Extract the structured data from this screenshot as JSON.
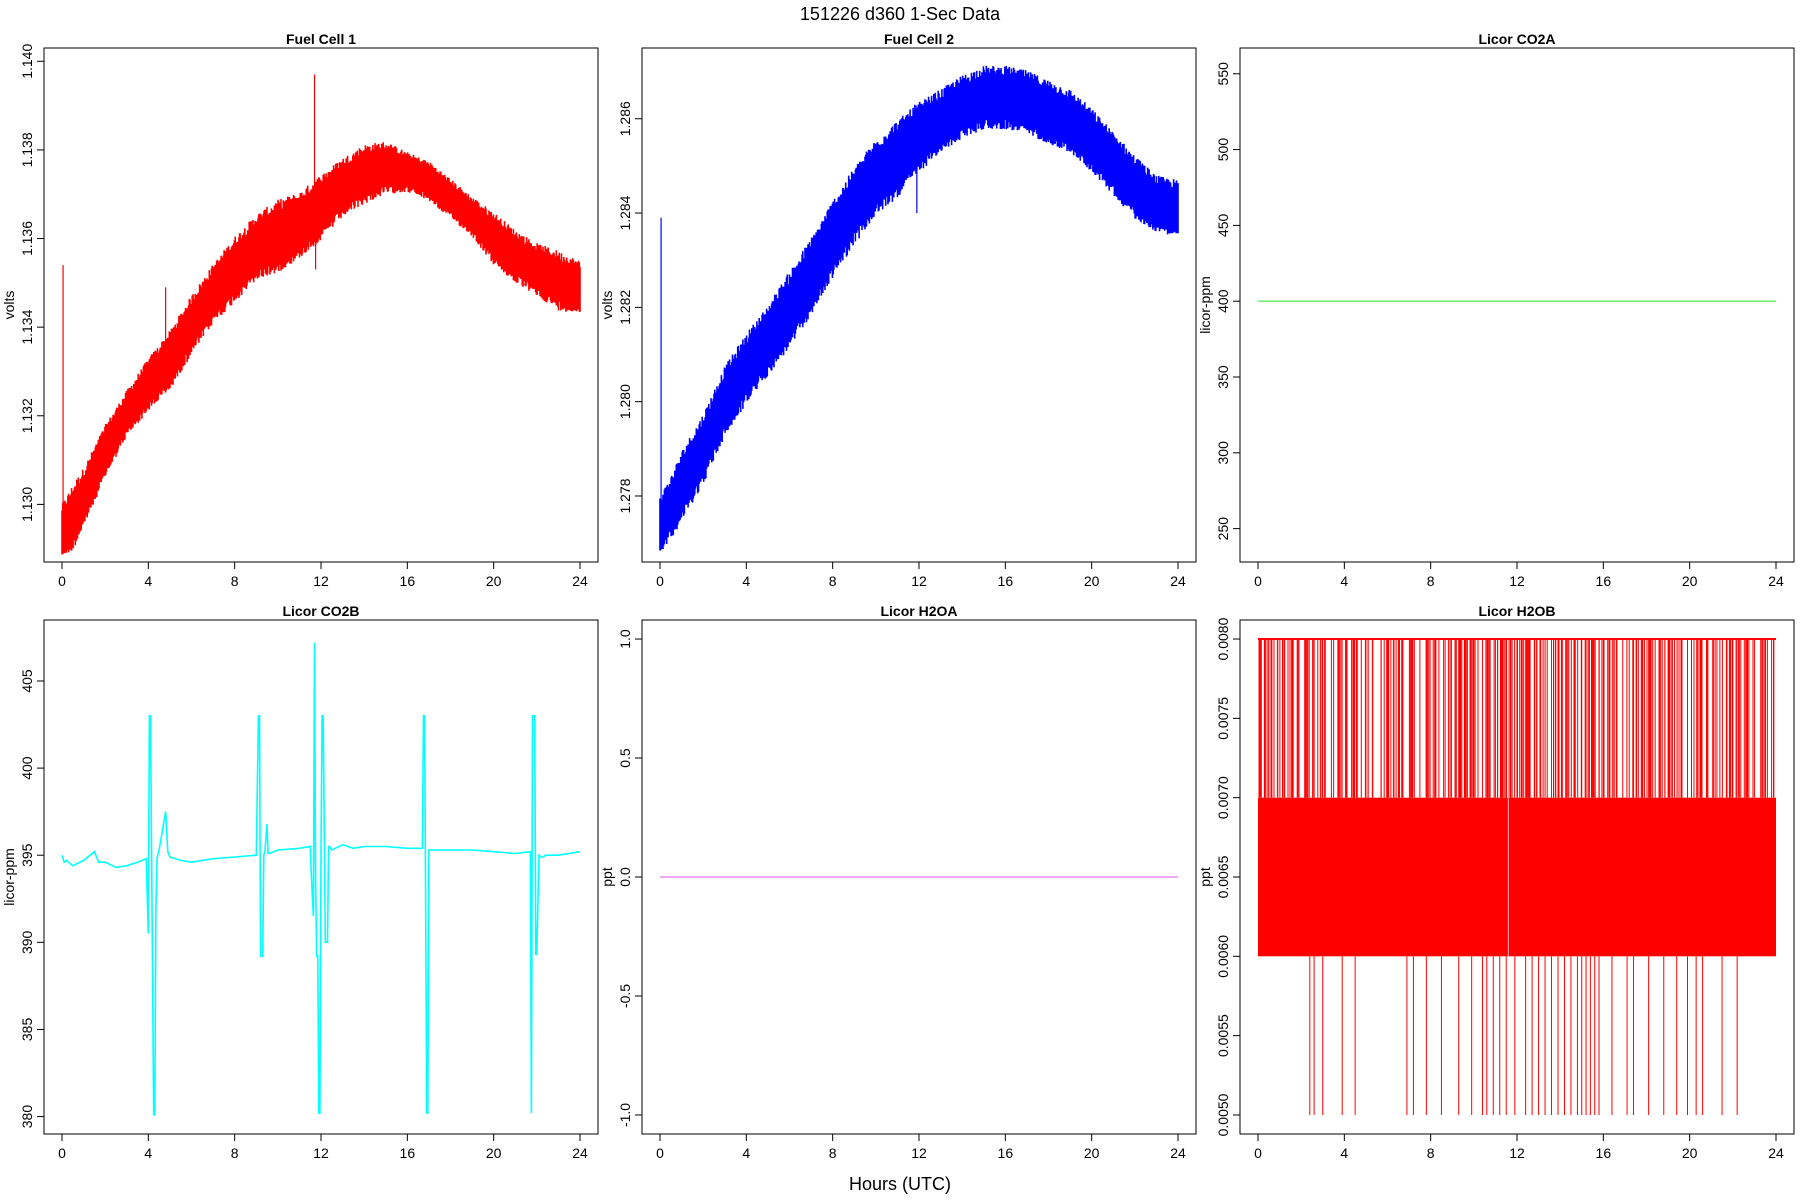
{
  "figure": {
    "title": "151226   d360   1-Sec Data",
    "xlabel": "Hours (UTC)"
  },
  "chart_data": [
    {
      "type": "line",
      "title": "Fuel Cell 1",
      "ylabel": "volts",
      "color": "#ff0000",
      "xlim": [
        0,
        24
      ],
      "xticks": [
        0,
        4,
        8,
        12,
        16,
        20,
        24
      ],
      "ylim": [
        1.1287,
        1.1403
      ],
      "yticks": [
        "1.130",
        "1.132",
        "1.134",
        "1.136",
        "1.138",
        "1.140"
      ],
      "yticks_values": [
        1.13,
        1.132,
        1.134,
        1.136,
        1.138,
        1.14
      ],
      "x": [
        0,
        0.5,
        1,
        2,
        3,
        4,
        5,
        6,
        7,
        8,
        9,
        10,
        11,
        12,
        13,
        14,
        15,
        16,
        17,
        18,
        19,
        20,
        21,
        22,
        23,
        24
      ],
      "y_low": [
        1.129,
        1.1292,
        1.1297,
        1.1308,
        1.1317,
        1.1323,
        1.1328,
        1.1336,
        1.1343,
        1.1348,
        1.1353,
        1.1355,
        1.1358,
        1.1362,
        1.1367,
        1.137,
        1.1372,
        1.1372,
        1.137,
        1.1366,
        1.1362,
        1.1356,
        1.1352,
        1.1349,
        1.1346,
        1.1345
      ],
      "y_high": [
        1.1298,
        1.1302,
        1.1306,
        1.1316,
        1.1324,
        1.1331,
        1.1337,
        1.1345,
        1.1352,
        1.1358,
        1.1363,
        1.1366,
        1.1368,
        1.1372,
        1.1376,
        1.1379,
        1.138,
        1.1378,
        1.1376,
        1.1372,
        1.1368,
        1.1364,
        1.136,
        1.1357,
        1.1355,
        1.1353
      ],
      "spikes": [
        {
          "x": 0.05,
          "y": 1.1354
        },
        {
          "x": 4.8,
          "y": 1.1349
        },
        {
          "x": 11.7,
          "y": 1.1397
        },
        {
          "x": 11.75,
          "y": 1.1353
        }
      ]
    },
    {
      "type": "line",
      "title": "Fuel Cell 2",
      "ylabel": "volts",
      "color": "#0000ff",
      "xlim": [
        0,
        24
      ],
      "xticks": [
        0,
        4,
        8,
        12,
        16,
        20,
        24
      ],
      "ylim": [
        1.2766,
        1.2875
      ],
      "yticks": [
        "1.278",
        "1.280",
        "1.282",
        "1.284",
        "1.286"
      ],
      "yticks_values": [
        1.278,
        1.28,
        1.282,
        1.284,
        1.286
      ],
      "x": [
        0,
        0.5,
        1,
        2,
        3,
        4,
        5,
        6,
        7,
        8,
        9,
        10,
        11,
        12,
        13,
        14,
        15,
        16,
        17,
        18,
        19,
        20,
        21,
        22,
        23,
        24
      ],
      "y_low": [
        1.277,
        1.2773,
        1.2777,
        1.2785,
        1.2795,
        1.2802,
        1.2808,
        1.2814,
        1.2821,
        1.2829,
        1.2836,
        1.2842,
        1.2846,
        1.2851,
        1.2855,
        1.2858,
        1.286,
        1.286,
        1.2859,
        1.2857,
        1.2855,
        1.2851,
        1.2846,
        1.2841,
        1.2838,
        1.2837
      ],
      "y_high": [
        1.2778,
        1.2782,
        1.2787,
        1.2795,
        1.2805,
        1.2812,
        1.2818,
        1.2825,
        1.2832,
        1.284,
        1.2847,
        1.2853,
        1.2857,
        1.2861,
        1.2864,
        1.2867,
        1.2869,
        1.2869,
        1.2868,
        1.2866,
        1.2864,
        1.286,
        1.2855,
        1.285,
        1.2846,
        1.2845
      ],
      "spikes": [
        {
          "x": 0.05,
          "y": 1.2839
        },
        {
          "x": 11.8,
          "y": 1.2863
        },
        {
          "x": 11.9,
          "y": 1.284
        }
      ]
    },
    {
      "type": "line",
      "title": "Licor CO2A",
      "ylabel": "licor-ppm",
      "color": "#7cf07c",
      "xlim": [
        0,
        24
      ],
      "xticks": [
        0,
        4,
        8,
        12,
        16,
        20,
        24
      ],
      "ylim": [
        228,
        567
      ],
      "yticks": [
        "250",
        "300",
        "350",
        "400",
        "450",
        "500",
        "550"
      ],
      "yticks_values": [
        250,
        300,
        350,
        400,
        450,
        500,
        550
      ],
      "x": [
        0,
        24
      ],
      "y": [
        400,
        400
      ]
    },
    {
      "type": "line",
      "title": "Licor CO2B",
      "ylabel": "licor-ppm",
      "color": "#00ffff",
      "xlim": [
        0,
        24
      ],
      "xticks": [
        0,
        4,
        8,
        12,
        16,
        20,
        24
      ],
      "ylim": [
        379,
        408.5
      ],
      "yticks": [
        "380",
        "385",
        "390",
        "395",
        "400",
        "405"
      ],
      "yticks_values": [
        380,
        385,
        390,
        395,
        400,
        405
      ],
      "x": [
        0,
        0.1,
        0.2,
        0.5,
        1.0,
        1.5,
        1.7,
        2.0,
        2.5,
        3.0,
        3.5,
        3.9,
        4.0,
        4.05,
        4.1,
        4.25,
        4.3,
        4.35,
        4.4,
        4.5,
        4.8,
        4.9,
        5.0,
        5.5,
        6.0,
        7.0,
        8.0,
        9.0,
        9.1,
        9.15,
        9.2,
        9.3,
        9.35,
        9.4,
        9.5,
        9.55,
        9.6,
        9.8,
        10.0,
        11.0,
        11.5,
        11.6,
        11.65,
        11.7,
        11.75,
        11.8,
        11.85,
        11.9,
        11.95,
        12.0,
        12.05,
        12.1,
        12.2,
        12.3,
        12.35,
        12.4,
        12.5,
        13.0,
        13.5,
        14.0,
        15.0,
        16.0,
        16.7,
        16.75,
        16.8,
        16.9,
        16.95,
        17.0,
        17.1,
        18.0,
        19.0,
        20.0,
        21.0,
        21.7,
        21.75,
        21.8,
        21.9,
        21.95,
        22.0,
        22.1,
        22.2,
        22.3,
        22.4,
        23.0,
        24.0
      ],
      "y": [
        395.0,
        394.6,
        394.7,
        394.4,
        394.7,
        395.2,
        394.6,
        394.6,
        394.3,
        394.4,
        394.6,
        394.8,
        390.5,
        403.0,
        403.0,
        380.1,
        380.1,
        392.0,
        394.8,
        395.3,
        397.5,
        395.2,
        394.9,
        394.7,
        394.6,
        394.8,
        394.9,
        395.0,
        403.0,
        403.0,
        389.2,
        389.2,
        395.0,
        395.2,
        396.8,
        395.1,
        395.1,
        395.2,
        395.3,
        395.4,
        395.5,
        392.5,
        391.5,
        407.2,
        393.5,
        389.2,
        389.2,
        380.2,
        380.2,
        395.2,
        403.0,
        403.0,
        390.0,
        390.0,
        395.5,
        395.5,
        395.3,
        395.6,
        395.4,
        395.5,
        395.5,
        395.4,
        395.4,
        403.0,
        403.0,
        380.2,
        380.2,
        395.3,
        395.3,
        395.3,
        395.3,
        395.2,
        395.1,
        395.2,
        380.2,
        403.0,
        403.0,
        389.3,
        389.3,
        395.0,
        394.9,
        394.9,
        395.0,
        395.0,
        395.2
      ]
    },
    {
      "type": "line",
      "title": "Licor H2OA",
      "ylabel": "ppt",
      "color": "#e88de8",
      "xlim": [
        0,
        24
      ],
      "xticks": [
        0,
        4,
        8,
        12,
        16,
        20,
        24
      ],
      "ylim": [
        -1.08,
        1.08
      ],
      "yticks": [
        "-1.0",
        "-0.5",
        "0.0",
        "0.5",
        "1.0"
      ],
      "yticks_values": [
        -1.0,
        -0.5,
        0.0,
        0.5,
        1.0
      ],
      "x": [
        0,
        24
      ],
      "y": [
        0,
        0
      ]
    },
    {
      "type": "line",
      "title": "Licor H2OB",
      "ylabel": "ppt",
      "color": "#ff0000",
      "xlim": [
        0,
        24
      ],
      "xticks": [
        0,
        4,
        8,
        12,
        16,
        20,
        24
      ],
      "ylim": [
        0.00488,
        0.00812
      ],
      "yticks": [
        "0.0050",
        "0.0055",
        "0.0060",
        "0.0065",
        "0.0070",
        "0.0075",
        "0.0080"
      ],
      "yticks_values": [
        0.005,
        0.0055,
        0.006,
        0.0065,
        0.007,
        0.0075,
        0.008
      ],
      "band": {
        "x_start": 0,
        "x_end": 24,
        "y_low": 0.006,
        "y_high": 0.007
      },
      "high_spikes_x": [
        0.1,
        0.3,
        0.5,
        0.9,
        1.2,
        1.6,
        1.9,
        2.3,
        2.6,
        3.0,
        3.4,
        3.7,
        4.1,
        4.4,
        4.6,
        5.0,
        5.3,
        5.7,
        6.0,
        6.3,
        6.7,
        7.1,
        7.5,
        7.8,
        8.2,
        8.6,
        8.9,
        9.3,
        9.7,
        10.0,
        10.4,
        10.7,
        11.0,
        11.3,
        11.7,
        12.0,
        12.2,
        12.5,
        12.8,
        13.1,
        13.3,
        13.6,
        13.9,
        14.1,
        14.4,
        14.7,
        15.0,
        15.2,
        15.5,
        15.8,
        16.0,
        16.3,
        16.6,
        16.9,
        17.2,
        17.4,
        17.8,
        18.1,
        18.4,
        18.6,
        19.0,
        19.3,
        19.6,
        19.9,
        20.2,
        20.5,
        20.8,
        21.1,
        21.4,
        21.7,
        22.0,
        22.3,
        22.6,
        23.0,
        23.3,
        23.6,
        23.9
      ],
      "low_spikes_x": [
        2.4,
        2.6,
        3.0,
        3.9,
        4.5,
        6.9,
        7.2,
        7.8,
        8.5,
        9.3,
        9.9,
        10.4,
        10.6,
        10.9,
        11.2,
        11.5,
        11.9,
        12.4,
        12.7,
        13.0,
        13.3,
        13.6,
        13.9,
        14.2,
        14.5,
        14.8,
        15.0,
        15.2,
        15.4,
        15.6,
        15.8,
        16.4,
        17.1,
        17.4,
        18.1,
        18.8,
        19.4,
        19.9,
        20.3,
        20.6,
        21.5,
        22.2
      ],
      "y_high_spike": 0.008,
      "y_low_spike": 0.005
    }
  ]
}
